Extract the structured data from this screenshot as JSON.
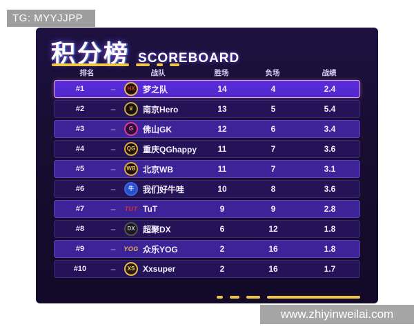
{
  "watermarks": {
    "top_left": "TG: MYYJJPP",
    "bottom_right": "www.zhiyinweilai.com"
  },
  "title": {
    "zh": "积分榜",
    "en": "SCOREBOARD"
  },
  "columns": {
    "rank": "排名",
    "team": "战队",
    "wins": "胜场",
    "losses": "负场",
    "record": "战绩"
  },
  "rank_separator": "–",
  "colors": {
    "accent_yellow": "#f0c64a",
    "panel_bg": "#170d30",
    "row_highlight_bg": "#5128cc",
    "row_highlight_border": "#e9a6d2",
    "row_medium_bg": "#3d2398",
    "row_dark_bg": "#241357",
    "badge_bg": "#9e9e9e"
  },
  "chart_data": {
    "type": "table",
    "title": "积分榜 SCOREBOARD",
    "columns": [
      "排名",
      "战队",
      "胜场",
      "负场",
      "战绩"
    ],
    "rows": [
      [
        "#1",
        "梦之队",
        14,
        4,
        2.4
      ],
      [
        "#2",
        "南京Hero",
        13,
        5,
        5.4
      ],
      [
        "#3",
        "佛山GK",
        12,
        6,
        3.4
      ],
      [
        "#4",
        "重庆QGhappy",
        11,
        7,
        3.6
      ],
      [
        "#5",
        "北京WB",
        11,
        7,
        3.1
      ],
      [
        "#6",
        "我们好牛哇",
        10,
        8,
        3.6
      ],
      [
        "#7",
        "TuT",
        9,
        9,
        2.8
      ],
      [
        "#8",
        "超聚DX",
        6,
        12,
        1.8
      ],
      [
        "#9",
        "众乐YOG",
        2,
        16,
        1.8
      ],
      [
        "#10",
        "Xxsuper",
        2,
        16,
        1.7
      ]
    ]
  },
  "teams": [
    {
      "rank": "#1",
      "name": "梦之队",
      "wins": "14",
      "losses": "4",
      "record": "2.4",
      "highlight": true,
      "logo": {
        "shape": "circle",
        "text": "HX",
        "bg": "#1d1205",
        "border": "#e8b84a",
        "color": "#e03a2a"
      }
    },
    {
      "rank": "#2",
      "name": "南京Hero",
      "wins": "13",
      "losses": "5",
      "record": "5.4",
      "logo": {
        "shape": "circle",
        "text": "♛",
        "bg": "#17120a",
        "border": "#caa43c",
        "color": "#e8b84a"
      }
    },
    {
      "rank": "#3",
      "name": "佛山GK",
      "wins": "12",
      "losses": "6",
      "record": "3.4",
      "logo": {
        "shape": "circle",
        "text": "G",
        "bg": "#2a1038",
        "border": "#e0389a",
        "color": "#ff67c0"
      }
    },
    {
      "rank": "#4",
      "name": "重庆QGhappy",
      "wins": "11",
      "losses": "7",
      "record": "3.6",
      "logo": {
        "shape": "circle",
        "text": "QG",
        "bg": "#1c1208",
        "border": "#d8a83c",
        "color": "#e8c06a"
      }
    },
    {
      "rank": "#5",
      "name": "北京WB",
      "wins": "11",
      "losses": "7",
      "record": "3.1",
      "logo": {
        "shape": "circle",
        "text": "WB",
        "bg": "#1c1208",
        "border": "#d8a83c",
        "color": "#e8c06a"
      }
    },
    {
      "rank": "#6",
      "name": "我们好牛哇",
      "wins": "10",
      "losses": "8",
      "record": "3.6",
      "logo": {
        "shape": "circle",
        "text": "牛",
        "bg": "#2a50c8",
        "border": "#3a66e0",
        "color": "#d5e2ff"
      }
    },
    {
      "rank": "#7",
      "name": "TuT",
      "wins": "9",
      "losses": "9",
      "record": "2.8",
      "logo": {
        "shape": "text",
        "text": "TUT",
        "bg": "transparent",
        "border": "transparent",
        "color": "#e03228"
      }
    },
    {
      "rank": "#8",
      "name": "超聚DX",
      "wins": "6",
      "losses": "12",
      "record": "1.8",
      "logo": {
        "shape": "circle",
        "text": "DX",
        "bg": "#191922",
        "border": "#55524a",
        "color": "#cfcad8"
      }
    },
    {
      "rank": "#9",
      "name": "众乐YOG",
      "wins": "2",
      "losses": "16",
      "record": "1.8",
      "logo": {
        "shape": "text",
        "text": "YOG",
        "bg": "transparent",
        "border": "transparent",
        "color": "#e8b84a"
      }
    },
    {
      "rank": "#10",
      "name": "Xxsuper",
      "wins": "2",
      "losses": "16",
      "record": "1.7",
      "logo": {
        "shape": "circle",
        "text": "XS",
        "bg": "#2a1c08",
        "border": "#e8b84a",
        "color": "#f2cd6e"
      }
    }
  ]
}
